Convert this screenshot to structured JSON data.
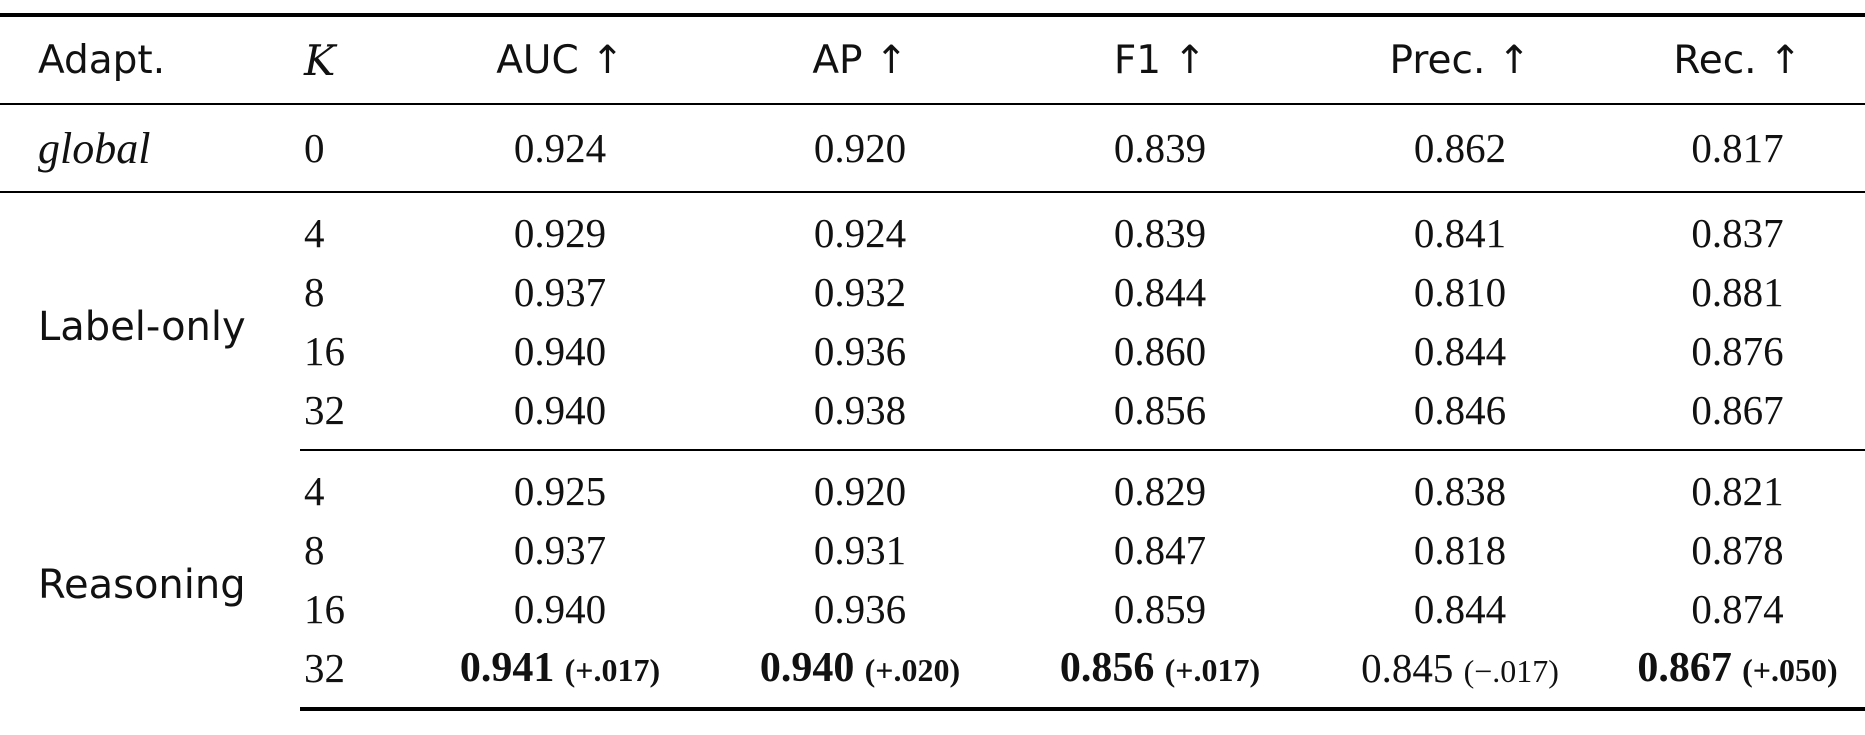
{
  "table": {
    "headers": {
      "adapt": "Adapt.",
      "k": "K",
      "auc": "AUC ↑",
      "ap": "AP ↑",
      "f1": "F1 ↑",
      "prec": "Prec. ↑",
      "rec": "Rec. ↑"
    },
    "global": {
      "adapt": "global",
      "k": "0",
      "auc": "0.924",
      "ap": "0.920",
      "f1": "0.839",
      "prec": "0.862",
      "rec": "0.817"
    },
    "label_only": {
      "adapt": "Label-only",
      "rows": [
        {
          "k": "4",
          "auc": "0.929",
          "ap": "0.924",
          "f1": "0.839",
          "prec": "0.841",
          "rec": "0.837"
        },
        {
          "k": "8",
          "auc": "0.937",
          "ap": "0.932",
          "f1": "0.844",
          "prec": "0.810",
          "rec": "0.881"
        },
        {
          "k": "16",
          "auc": "0.940",
          "ap": "0.936",
          "f1": "0.860",
          "prec": "0.844",
          "rec": "0.876"
        },
        {
          "k": "32",
          "auc": "0.940",
          "ap": "0.938",
          "f1": "0.856",
          "prec": "0.846",
          "rec": "0.867"
        }
      ]
    },
    "reasoning": {
      "adapt": "Reasoning",
      "rows": [
        {
          "k": "4",
          "auc": "0.925",
          "ap": "0.920",
          "f1": "0.829",
          "prec": "0.838",
          "rec": "0.821"
        },
        {
          "k": "8",
          "auc": "0.937",
          "ap": "0.931",
          "f1": "0.847",
          "prec": "0.818",
          "rec": "0.878"
        },
        {
          "k": "16",
          "auc": "0.940",
          "ap": "0.936",
          "f1": "0.859",
          "prec": "0.844",
          "rec": "0.874"
        }
      ],
      "last_row": {
        "k": "32",
        "auc": "0.941",
        "auc_delta": "(+.017)",
        "ap": "0.940",
        "ap_delta": "(+.020)",
        "f1": "0.856",
        "f1_delta": "(+.017)",
        "prec": "0.845",
        "prec_delta": "(−.017)",
        "rec": "0.867",
        "rec_delta": "(+.050)"
      }
    }
  }
}
